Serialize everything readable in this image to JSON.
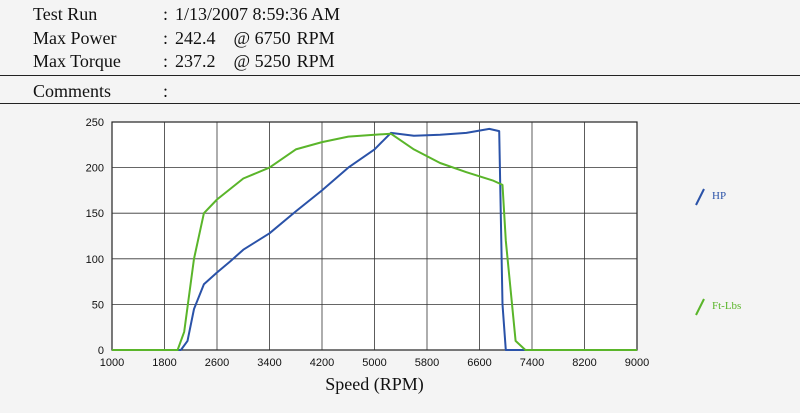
{
  "header": {
    "test_run_label": "Test Run",
    "test_run_value": "1/13/2007 8:59:36 AM",
    "max_power_label": "Max Power",
    "max_power_value": "242.4",
    "max_power_at": "@ 6750",
    "max_power_unit": "RPM",
    "max_torque_label": "Max Torque",
    "max_torque_value": "237.2",
    "max_torque_at": "@ 5250",
    "max_torque_unit": "RPM",
    "comments_label": "Comments",
    "separator": ":"
  },
  "chart_data": {
    "type": "line",
    "xlabel": "Speed (RPM)",
    "ylabel": "",
    "xlim": [
      1000,
      9000
    ],
    "ylim": [
      0,
      250
    ],
    "x_ticks": [
      1000,
      1800,
      2600,
      3400,
      4200,
      5000,
      5800,
      6600,
      7400,
      8200,
      9000
    ],
    "y_ticks": [
      0,
      50,
      100,
      150,
      200,
      250
    ],
    "grid": true,
    "legend_position": "right",
    "series": [
      {
        "name": "HP",
        "color": "#2a52a8",
        "points": [
          [
            1000,
            0
          ],
          [
            2050,
            0
          ],
          [
            2150,
            10
          ],
          [
            2250,
            45
          ],
          [
            2400,
            72
          ],
          [
            2600,
            85
          ],
          [
            2800,
            97
          ],
          [
            3000,
            110
          ],
          [
            3400,
            128
          ],
          [
            3800,
            152
          ],
          [
            4200,
            175
          ],
          [
            4600,
            200
          ],
          [
            5000,
            220
          ],
          [
            5250,
            238
          ],
          [
            5600,
            235
          ],
          [
            6000,
            236
          ],
          [
            6400,
            238
          ],
          [
            6750,
            242.4
          ],
          [
            6900,
            240
          ],
          [
            6950,
            50
          ],
          [
            7000,
            0
          ],
          [
            9000,
            0
          ]
        ]
      },
      {
        "name": "Ft-Lbs",
        "color": "#5ab52a",
        "points": [
          [
            1000,
            0
          ],
          [
            2000,
            0
          ],
          [
            2100,
            20
          ],
          [
            2250,
            100
          ],
          [
            2400,
            150
          ],
          [
            2600,
            165
          ],
          [
            3000,
            188
          ],
          [
            3400,
            200
          ],
          [
            3800,
            220
          ],
          [
            4200,
            228
          ],
          [
            4600,
            234
          ],
          [
            5000,
            236
          ],
          [
            5250,
            237.2
          ],
          [
            5600,
            220
          ],
          [
            6000,
            205
          ],
          [
            6400,
            195
          ],
          [
            6800,
            186
          ],
          [
            6950,
            181
          ],
          [
            7000,
            120
          ],
          [
            7150,
            10
          ],
          [
            7300,
            0
          ],
          [
            9000,
            0
          ]
        ]
      }
    ]
  }
}
